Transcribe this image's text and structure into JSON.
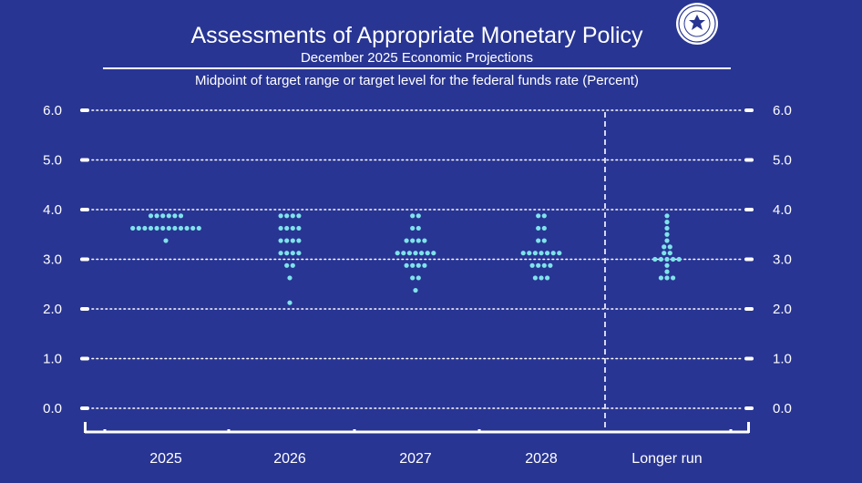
{
  "chart_data": {
    "type": "scatter",
    "title": "Assessments of Appropriate Monetary Policy",
    "subtitle": "December 2025 Economic Projections",
    "ylabel": "Midpoint of target range or target level for the federal funds rate (Percent)",
    "xlabel": "",
    "ylim": [
      0,
      6
    ],
    "yticks": [
      0.0,
      1.0,
      2.0,
      3.0,
      4.0,
      5.0,
      6.0
    ],
    "ytick_labels": [
      "0.0",
      "1.0",
      "2.0",
      "3.0",
      "4.0",
      "5.0",
      "6.0"
    ],
    "grid": true,
    "categories": [
      "2025",
      "2026",
      "2027",
      "2028",
      "Longer run"
    ],
    "dot_plot": [
      {
        "category": "2025",
        "levels": [
          {
            "rate": 3.875,
            "count": 6
          },
          {
            "rate": 3.625,
            "count": 12
          },
          {
            "rate": 3.375,
            "count": 1
          }
        ]
      },
      {
        "category": "2026",
        "levels": [
          {
            "rate": 3.875,
            "count": 4
          },
          {
            "rate": 3.625,
            "count": 4
          },
          {
            "rate": 3.375,
            "count": 4
          },
          {
            "rate": 3.125,
            "count": 4
          },
          {
            "rate": 2.875,
            "count": 2
          },
          {
            "rate": 2.625,
            "count": 1
          },
          {
            "rate": 2.125,
            "count": 1
          }
        ]
      },
      {
        "category": "2027",
        "levels": [
          {
            "rate": 3.875,
            "count": 2
          },
          {
            "rate": 3.625,
            "count": 2
          },
          {
            "rate": 3.375,
            "count": 4
          },
          {
            "rate": 3.125,
            "count": 7
          },
          {
            "rate": 2.875,
            "count": 4
          },
          {
            "rate": 2.625,
            "count": 2
          },
          {
            "rate": 2.375,
            "count": 1
          }
        ]
      },
      {
        "category": "2028",
        "levels": [
          {
            "rate": 3.875,
            "count": 2
          },
          {
            "rate": 3.625,
            "count": 2
          },
          {
            "rate": 3.375,
            "count": 2
          },
          {
            "rate": 3.125,
            "count": 7
          },
          {
            "rate": 2.875,
            "count": 4
          },
          {
            "rate": 2.625,
            "count": 3
          }
        ]
      },
      {
        "category": "Longer run",
        "levels": [
          {
            "rate": 3.875,
            "count": 1
          },
          {
            "rate": 3.75,
            "count": 1
          },
          {
            "rate": 3.625,
            "count": 1
          },
          {
            "rate": 3.5,
            "count": 1
          },
          {
            "rate": 3.375,
            "count": 1
          },
          {
            "rate": 3.25,
            "count": 2
          },
          {
            "rate": 3.125,
            "count": 2
          },
          {
            "rate": 3.0,
            "count": 5
          },
          {
            "rate": 2.875,
            "count": 1
          },
          {
            "rate": 2.75,
            "count": 1
          },
          {
            "rate": 2.625,
            "count": 3
          }
        ]
      }
    ]
  },
  "colors": {
    "background": "#283593",
    "dot": "#7fe3ea",
    "text": "#ffffff"
  },
  "icons": {
    "seal": "federal-reserve-seal-icon"
  }
}
